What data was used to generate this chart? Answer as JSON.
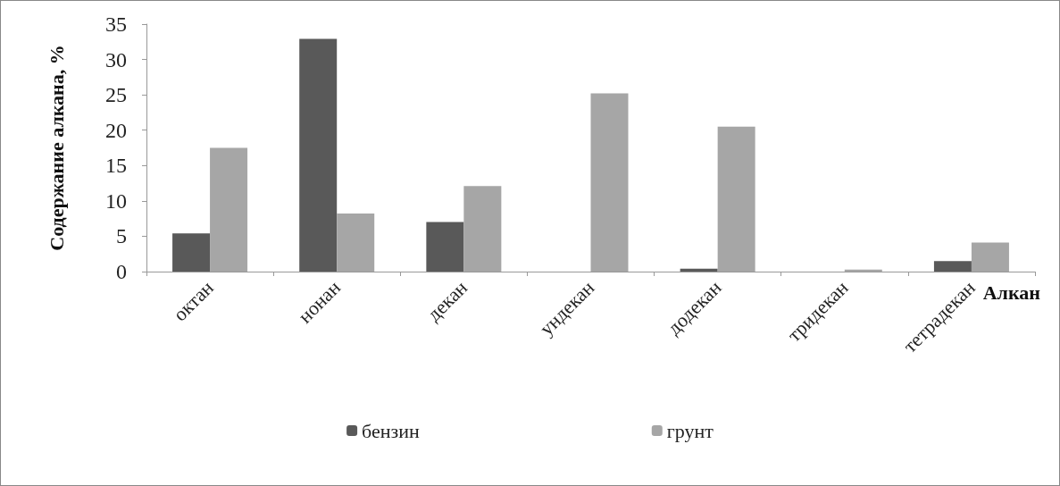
{
  "chart_data": {
    "type": "bar",
    "xlabel": "Алкан",
    "ylabel": "Содержание алкана, %",
    "categories": [
      "октан",
      "нонан",
      "декан",
      "ундекан",
      "додекан",
      "тридекан",
      "тетрадекан"
    ],
    "series": [
      {
        "name": "бензин",
        "color": "#595959",
        "values": [
          5.4,
          32.9,
          7.0,
          0,
          0.4,
          0,
          1.5
        ]
      },
      {
        "name": "грунт",
        "color": "#a6a6a6",
        "values": [
          17.5,
          8.2,
          12.1,
          25.2,
          20.5,
          0.3,
          4.1
        ]
      }
    ],
    "ylim": [
      0,
      35
    ],
    "yticks": [
      0,
      5,
      10,
      15,
      20,
      25,
      30,
      35
    ],
    "grid": false,
    "legend": "bottom"
  }
}
